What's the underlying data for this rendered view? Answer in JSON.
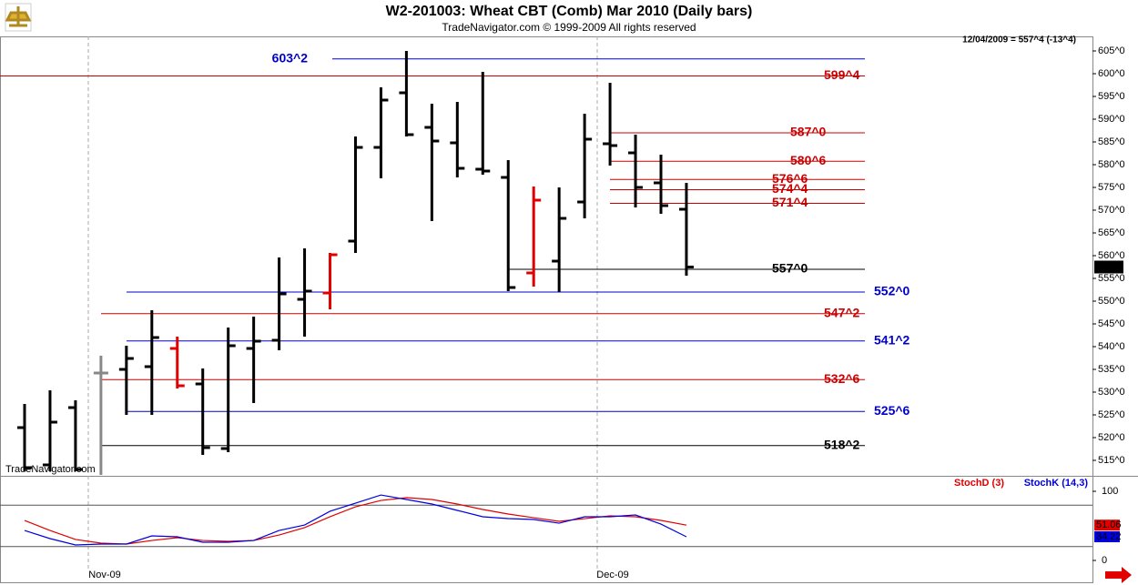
{
  "header": {
    "title": "W2-201003:  Wheat CBT (Comb) Mar 2010  (Daily bars)",
    "subtitle": "TradeNavigator.com © 1999-2009 All rights reserved",
    "info": "12/04/2009 = 557^4 (-13^4)",
    "watermark": "TradeNavigator.com",
    "x_labels": [
      "Nov-09",
      "Dec-09"
    ]
  },
  "chart_data": [
    {
      "type": "ohlc",
      "categories": [
        null,
        null,
        null,
        null,
        null,
        null,
        null,
        null,
        null,
        null,
        null,
        null,
        null,
        null,
        null,
        null,
        null,
        null,
        null,
        null,
        null,
        null,
        null,
        null,
        null,
        null,
        null
      ],
      "open": [
        522.2,
        514,
        526.6,
        534.2,
        535,
        535.6,
        539.6,
        531.8,
        517.6,
        539.6,
        541.4,
        550.4,
        551.8,
        563.2,
        583.8,
        595.8,
        588.2,
        584.8,
        579,
        577.2,
        556.2,
        558.8,
        571.8,
        584.6,
        582.6,
        576,
        570.2
      ],
      "high": [
        527.4,
        530.4,
        528.2,
        538,
        540.2,
        548,
        542.2,
        535.2,
        544.2,
        546.6,
        559.6,
        561.6,
        560.6,
        586.2,
        597,
        605,
        593.4,
        593.8,
        600.4,
        581,
        575.2,
        575,
        591.2,
        598,
        586.6,
        582.2,
        576
      ],
      "low": [
        512.6,
        512.6,
        512.6,
        511.8,
        525,
        525,
        530.8,
        516.2,
        516.8,
        527.6,
        539.2,
        542.2,
        548.2,
        560.6,
        577,
        586.2,
        567.6,
        577.2,
        577.8,
        552.2,
        553.2,
        552,
        568.2,
        579.8,
        570.6,
        569.2,
        555.6
      ],
      "close": [
        513.4,
        523.4,
        513,
        534.2,
        537.4,
        542,
        531.4,
        517.8,
        540.2,
        541.2,
        551.6,
        552.2,
        560.2,
        583.8,
        594.2,
        586.6,
        585.2,
        579.2,
        578.6,
        553,
        572.2,
        568.2,
        585.6,
        584.2,
        575,
        571,
        557.5
      ],
      "colors": [
        "#000000",
        "#000000",
        "#000000",
        "#888888",
        "#000000",
        "#000000",
        "#e00000",
        "#000000",
        "#000000",
        "#000000",
        "#000000",
        "#000000",
        "#e00000",
        "#000000",
        "#000000",
        "#000000",
        "#000000",
        "#000000",
        "#000000",
        "#000000",
        "#e00000",
        "#000000",
        "#000000",
        "#000000",
        "#000000",
        "#000000",
        "#000000"
      ],
      "ylim": [
        511.6,
        608.2
      ],
      "yticks": [
        {
          "value": 515,
          "label": "515^0"
        },
        {
          "value": 520,
          "label": "520^0"
        },
        {
          "value": 525,
          "label": "525^0"
        },
        {
          "value": 530,
          "label": "530^0"
        },
        {
          "value": 535,
          "label": "535^0"
        },
        {
          "value": 540,
          "label": "540^0"
        },
        {
          "value": 545,
          "label": "545^0"
        },
        {
          "value": 550,
          "label": "550^0"
        },
        {
          "value": 555,
          "label": "555^0"
        },
        {
          "value": 560,
          "label": "560^0"
        },
        {
          "value": 565,
          "label": "565^0"
        },
        {
          "value": 570,
          "label": "570^0"
        },
        {
          "value": 575,
          "label": "575^0"
        },
        {
          "value": 580,
          "label": "580^0"
        },
        {
          "value": 585,
          "label": "585^0"
        },
        {
          "value": 590,
          "label": "590^0"
        },
        {
          "value": 595,
          "label": "595^0"
        },
        {
          "value": 600,
          "label": "600^0"
        },
        {
          "value": 605,
          "label": "605^0"
        }
      ],
      "last_price": {
        "value": 557.5,
        "label": "557^4"
      },
      "levels": [
        {
          "value": 603.25,
          "label": "603^2",
          "color": "#0000cc"
        },
        {
          "value": 599.5,
          "label": "599^4",
          "color": "#cc0000"
        },
        {
          "value": 587,
          "label": "587^0",
          "color": "#cc0000"
        },
        {
          "value": 580.75,
          "label": "580^6",
          "color": "#cc0000"
        },
        {
          "value": 576.75,
          "label": "576^6",
          "color": "#cc0000"
        },
        {
          "value": 574.5,
          "label": "574^4",
          "color": "#cc0000"
        },
        {
          "value": 571.5,
          "label": "571^4",
          "color": "#cc0000"
        },
        {
          "value": 557,
          "label": "557^0",
          "color": "#000000"
        },
        {
          "value": 552,
          "label": "552^0",
          "color": "#0000cc"
        },
        {
          "value": 547.25,
          "label": "547^2",
          "color": "#cc0000"
        },
        {
          "value": 541.25,
          "label": "541^2",
          "color": "#0000cc"
        },
        {
          "value": 532.75,
          "label": "532^6",
          "color": "#cc0000"
        },
        {
          "value": 525.75,
          "label": "525^6",
          "color": "#0000cc"
        },
        {
          "value": 518.25,
          "label": "518^2",
          "color": "#000000"
        }
      ]
    },
    {
      "type": "line",
      "series": [
        {
          "name": "StochD (3)",
          "color": "#e00000",
          "values": [
            57.9,
            43.4,
            30.3,
            25,
            23.7,
            28.9,
            32.9,
            28.9,
            27.6,
            28.9,
            36.8,
            47.4,
            63.2,
            77.6,
            86.8,
            90.8,
            88.2,
            81.6,
            73.7,
            67.1,
            61.8,
            56.6,
            60.5,
            64.5,
            63.2,
            57.9,
            51.06
          ]
        },
        {
          "name": "StochK (14,3)",
          "color": "#0000e0",
          "values": [
            43.4,
            31.6,
            22.4,
            23.7,
            23.7,
            35.5,
            34.2,
            26.3,
            26.3,
            28.9,
            43.4,
            51.3,
            71.1,
            82.9,
            94.7,
            88.2,
            81.6,
            72.4,
            63.2,
            60.5,
            59.2,
            53.9,
            63.2,
            63.2,
            65.8,
            52.6,
            34.22
          ]
        }
      ],
      "ylim": [
        -31.6,
        121.1
      ],
      "yticks": [
        0,
        100
      ],
      "guides": [
        80,
        20
      ]
    }
  ]
}
